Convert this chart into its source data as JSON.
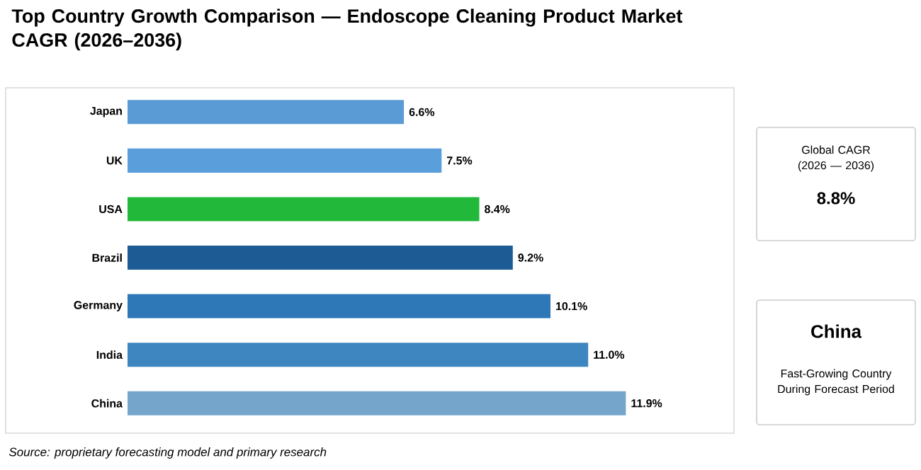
{
  "chart_data": [
    {
      "type": "bar",
      "orientation": "horizontal",
      "title": "Top Country Growth Comparison — Endoscope Cleaning Product Market CAGR (2026–2036)",
      "categories": [
        "Japan",
        "UK",
        "USA",
        "Brazil",
        "Germany",
        "India",
        "China"
      ],
      "values": [
        6.6,
        7.5,
        8.4,
        9.2,
        10.1,
        11.0,
        11.9
      ],
      "value_labels": [
        "6.6%",
        "7.5%",
        "8.4%",
        "9.2%",
        "10.1%",
        "11.0%",
        "11.9%"
      ],
      "colors": [
        "#5b9bd5",
        "#5a9fdc",
        "#22b83a",
        "#1d5b94",
        "#2e78b8",
        "#3d86c0",
        "#76a5cc"
      ],
      "tick_labels": "y",
      "annotations": [
        "Source: proprietary forecasting model and primary research"
      ]
    },
    {
      "type": "other",
      "annotations": [
        "Global CAGR (2026 — 2036)",
        "8.8%",
        "China",
        "Fast-Growing Country During Forecast Period"
      ]
    }
  ]
}
